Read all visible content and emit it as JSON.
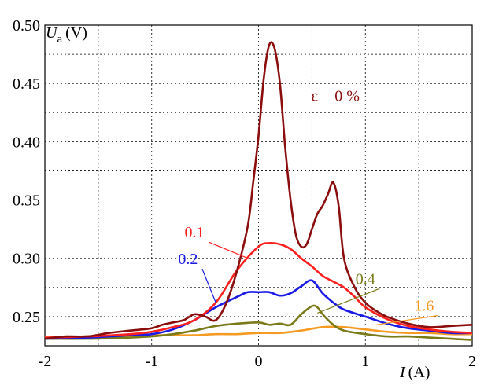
{
  "chart_data": {
    "type": "line",
    "title": "",
    "xlabel": {
      "symbol": "I",
      "unit": "(A)"
    },
    "ylabel": {
      "symbol": "U",
      "subscript": "a",
      "unit": "(V)"
    },
    "xlim": [
      -2,
      2
    ],
    "ylim": [
      0.225,
      0.5
    ],
    "xticks": [
      -2,
      -1,
      0,
      1,
      2
    ],
    "xtick_labels": [
      "-2",
      "-1",
      "0",
      "1",
      "2"
    ],
    "yticks": [
      0.25,
      0.3,
      0.35,
      0.4,
      0.45,
      0.5
    ],
    "ytick_labels": [
      "0.25",
      "0.30",
      "0.35",
      "0.40",
      "0.45",
      "0.50"
    ],
    "grid": true,
    "series": [
      {
        "name": "ε = 0 %",
        "color": "#8b0d0d",
        "x": [
          -2.0,
          -1.8,
          -1.6,
          -1.4,
          -1.2,
          -1.0,
          -0.9,
          -0.8,
          -0.7,
          -0.6,
          -0.5,
          -0.4,
          -0.3,
          -0.2,
          -0.1,
          -0.05,
          0.0,
          0.05,
          0.1,
          0.15,
          0.2,
          0.25,
          0.3,
          0.35,
          0.4,
          0.45,
          0.5,
          0.55,
          0.6,
          0.65,
          0.7,
          0.75,
          0.8,
          0.9,
          1.0,
          1.1,
          1.2,
          1.4,
          1.6,
          1.8,
          2.0
        ],
        "y": [
          0.231,
          0.233,
          0.233,
          0.236,
          0.238,
          0.24,
          0.243,
          0.245,
          0.247,
          0.252,
          0.25,
          0.247,
          0.262,
          0.29,
          0.328,
          0.365,
          0.405,
          0.455,
          0.483,
          0.48,
          0.45,
          0.395,
          0.35,
          0.32,
          0.31,
          0.312,
          0.325,
          0.338,
          0.345,
          0.355,
          0.365,
          0.345,
          0.3,
          0.275,
          0.262,
          0.255,
          0.25,
          0.244,
          0.241,
          0.242,
          0.243
        ]
      },
      {
        "name": "0.1",
        "color": "#ff2020",
        "x": [
          -2.0,
          -1.6,
          -1.2,
          -1.0,
          -0.8,
          -0.6,
          -0.4,
          -0.2,
          0.0,
          0.1,
          0.2,
          0.3,
          0.4,
          0.5,
          0.6,
          0.7,
          0.8,
          0.9,
          1.0,
          1.2,
          1.4,
          1.6,
          1.8,
          2.0
        ],
        "y": [
          0.232,
          0.233,
          0.235,
          0.237,
          0.241,
          0.247,
          0.262,
          0.29,
          0.31,
          0.313,
          0.312,
          0.308,
          0.3,
          0.293,
          0.285,
          0.28,
          0.275,
          0.267,
          0.258,
          0.248,
          0.242,
          0.239,
          0.237,
          0.236
        ]
      },
      {
        "name": "0.2",
        "color": "#1a1ae6",
        "x": [
          -2.0,
          -1.6,
          -1.2,
          -1.0,
          -0.8,
          -0.6,
          -0.4,
          -0.2,
          -0.1,
          0.0,
          0.1,
          0.2,
          0.3,
          0.4,
          0.5,
          0.6,
          0.7,
          0.8,
          1.0,
          1.2,
          1.4,
          1.6,
          1.8,
          2.0
        ],
        "y": [
          0.231,
          0.232,
          0.234,
          0.235,
          0.239,
          0.247,
          0.258,
          0.267,
          0.271,
          0.271,
          0.271,
          0.268,
          0.27,
          0.276,
          0.281,
          0.27,
          0.262,
          0.256,
          0.25,
          0.244,
          0.24,
          0.238,
          0.236,
          0.236
        ]
      },
      {
        "name": "0.4",
        "color": "#7a7a18",
        "x": [
          -2.0,
          -1.6,
          -1.2,
          -1.0,
          -0.8,
          -0.6,
          -0.4,
          -0.2,
          0.0,
          0.1,
          0.2,
          0.3,
          0.4,
          0.5,
          0.55,
          0.6,
          0.7,
          0.8,
          1.0,
          1.2,
          1.4,
          1.6,
          1.8,
          2.0
        ],
        "y": [
          0.231,
          0.231,
          0.232,
          0.233,
          0.235,
          0.238,
          0.242,
          0.244,
          0.245,
          0.243,
          0.244,
          0.243,
          0.252,
          0.259,
          0.258,
          0.252,
          0.243,
          0.238,
          0.235,
          0.233,
          0.233,
          0.232,
          0.231,
          0.23
        ]
      },
      {
        "name": "1.6",
        "color": "#f59a23",
        "x": [
          -2.0,
          -1.6,
          -1.2,
          -1.0,
          -0.8,
          -0.6,
          -0.4,
          -0.2,
          0.0,
          0.2,
          0.4,
          0.6,
          0.8,
          1.0,
          1.2,
          1.4,
          1.6,
          1.8,
          2.0
        ],
        "y": [
          0.232,
          0.233,
          0.233,
          0.234,
          0.234,
          0.234,
          0.235,
          0.235,
          0.236,
          0.236,
          0.238,
          0.241,
          0.241,
          0.239,
          0.237,
          0.236,
          0.236,
          0.235,
          0.235
        ]
      }
    ],
    "series_labels": [
      {
        "text": "ε = 0 %",
        "color": "#8b0d0d",
        "x": 0.72,
        "y": 0.435,
        "anchor_x": 0.72,
        "anchor_y": 0.435,
        "leader": false
      },
      {
        "text": "0.1",
        "color": "#ff2020",
        "x": -0.6,
        "y": 0.318,
        "anchor_x": -0.1,
        "anchor_y": 0.3,
        "leader": true
      },
      {
        "text": "0.2",
        "color": "#1a1ae6",
        "x": -0.66,
        "y": 0.295,
        "anchor_x": -0.4,
        "anchor_y": 0.262,
        "leader": true
      },
      {
        "text": "0.4",
        "color": "#7a7a18",
        "x": 1.0,
        "y": 0.278,
        "anchor_x": 0.55,
        "anchor_y": 0.253,
        "leader": true
      },
      {
        "text": "1.6",
        "color": "#f59a23",
        "x": 1.55,
        "y": 0.255,
        "anchor_x": 1.1,
        "anchor_y": 0.243,
        "leader": true
      }
    ]
  }
}
